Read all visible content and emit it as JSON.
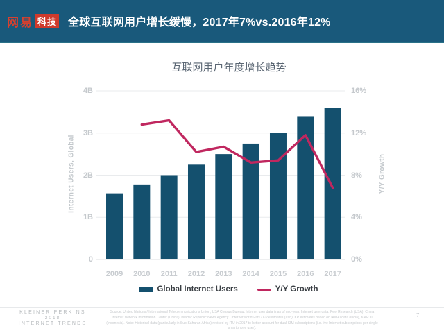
{
  "header": {
    "logo_brand": "网易",
    "logo_sub": "科技",
    "title": "全球互联网用户增长缓慢，2017年7%vs.2016年12%",
    "bg_color": "#19597b",
    "logo_red": "#cf3a2c"
  },
  "chart_data": {
    "type": "bar",
    "title": "互联网用户年度增长趋势",
    "categories": [
      "2009",
      "2010",
      "2011",
      "2012",
      "2013",
      "2014",
      "2015",
      "2016",
      "2017"
    ],
    "series": [
      {
        "name": "Global Internet Users",
        "kind": "bar",
        "axis": "left",
        "unit": "B",
        "color": "#14506e",
        "values": [
          1.57,
          1.78,
          2.0,
          2.25,
          2.5,
          2.75,
          3.0,
          3.4,
          3.6
        ]
      },
      {
        "name": "Y/Y Growth",
        "kind": "line",
        "axis": "right",
        "unit": "%",
        "color": "#c0275f",
        "values": [
          null,
          12.8,
          13.2,
          10.2,
          10.7,
          9.2,
          9.4,
          11.8,
          6.8
        ]
      }
    ],
    "ylabel_left": "Internet Users, Global",
    "ylabel_right": "Y/Y Growth",
    "ylim_left": [
      0,
      4
    ],
    "ylim_right": [
      0,
      16
    ],
    "yticks_left": [
      "0",
      "1B",
      "2B",
      "3B",
      "4B"
    ],
    "yticks_right": [
      "0%",
      "4%",
      "8%",
      "12%",
      "16%"
    ],
    "grid": "horizontal",
    "legend_position": "bottom"
  },
  "footer": {
    "brand_line1": "KLEINER PERKINS",
    "brand_line2": "2018",
    "brand_line3": "INTERNET TRENDS",
    "source": "Source: United Nations / International Telecommunications Union, USA Census Bureau. Internet user data is as of mid-year. Internet user data: Pew Research (USA), China Internet Network Information Center (China), Islamic Republic News Agency / InternetWorldStats / KP estimates (Iran), KP estimates based on IAMAI data (India), & APJII (Indonesia). Note: Historical data (particularly in Sub-Saharan Africa) revised by ITU in 2017 to better account for dual-SIM subscriptions (i.e. live Internet subscriptions per single smartphone user).",
    "page_number": "7"
  }
}
